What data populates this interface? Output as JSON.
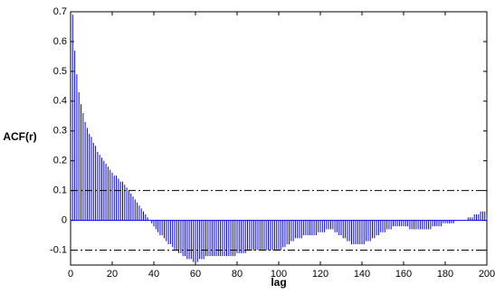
{
  "chart_data": {
    "type": "stem",
    "xlabel": "lag",
    "ylabel": "ACF(r)",
    "x": [
      1,
      2,
      3,
      4,
      5,
      6,
      7,
      8,
      9,
      10,
      11,
      12,
      13,
      14,
      15,
      16,
      17,
      18,
      19,
      20,
      21,
      22,
      23,
      24,
      25,
      26,
      27,
      28,
      29,
      30,
      31,
      32,
      33,
      34,
      35,
      36,
      37,
      38,
      39,
      40,
      41,
      42,
      43,
      44,
      45,
      46,
      47,
      48,
      49,
      50,
      51,
      52,
      53,
      54,
      55,
      56,
      57,
      58,
      59,
      60,
      61,
      62,
      63,
      64,
      65,
      66,
      67,
      68,
      69,
      70,
      71,
      72,
      73,
      74,
      75,
      76,
      77,
      78,
      79,
      80,
      81,
      82,
      83,
      84,
      85,
      86,
      87,
      88,
      89,
      90,
      91,
      92,
      93,
      94,
      95,
      96,
      97,
      98,
      99,
      100,
      101,
      102,
      103,
      104,
      105,
      106,
      107,
      108,
      109,
      110,
      111,
      112,
      113,
      114,
      115,
      116,
      117,
      118,
      119,
      120,
      121,
      122,
      123,
      124,
      125,
      126,
      127,
      128,
      129,
      130,
      131,
      132,
      133,
      134,
      135,
      136,
      137,
      138,
      139,
      140,
      141,
      142,
      143,
      144,
      145,
      146,
      147,
      148,
      149,
      150,
      151,
      152,
      153,
      154,
      155,
      156,
      157,
      158,
      159,
      160,
      161,
      162,
      163,
      164,
      165,
      166,
      167,
      168,
      169,
      170,
      171,
      172,
      173,
      174,
      175,
      176,
      177,
      178,
      179,
      180,
      181,
      182,
      183,
      184,
      185,
      186,
      187,
      188,
      189,
      190,
      191,
      192,
      193,
      194,
      195,
      196,
      197,
      198,
      199,
      200
    ],
    "series": [
      {
        "color": "#0000ff",
        "values": [
          0.69,
          0.57,
          0.49,
          0.43,
          0.39,
          0.36,
          0.33,
          0.31,
          0.29,
          0.28,
          0.26,
          0.25,
          0.23,
          0.22,
          0.21,
          0.2,
          0.19,
          0.18,
          0.17,
          0.16,
          0.15,
          0.15,
          0.14,
          0.13,
          0.13,
          0.12,
          0.11,
          0.1,
          0.09,
          0.08,
          0.07,
          0.06,
          0.05,
          0.04,
          0.03,
          0.02,
          0.01,
          0,
          -0.01,
          -0.02,
          -0.03,
          -0.04,
          -0.05,
          -0.05,
          -0.06,
          -0.07,
          -0.08,
          -0.08,
          -0.09,
          -0.1,
          -0.1,
          -0.11,
          -0.11,
          -0.12,
          -0.12,
          -0.13,
          -0.13,
          -0.13,
          -0.14,
          -0.14,
          -0.14,
          -0.13,
          -0.13,
          -0.13,
          -0.12,
          -0.12,
          -0.12,
          -0.12,
          -0.12,
          -0.12,
          -0.12,
          -0.12,
          -0.12,
          -0.12,
          -0.12,
          -0.12,
          -0.12,
          -0.12,
          -0.12,
          -0.11,
          -0.11,
          -0.11,
          -0.11,
          -0.11,
          -0.1,
          -0.1,
          -0.1,
          -0.1,
          -0.1,
          -0.1,
          -0.1,
          -0.1,
          -0.1,
          -0.1,
          -0.1,
          -0.1,
          -0.1,
          -0.1,
          -0.1,
          -0.1,
          -0.1,
          -0.09,
          -0.09,
          -0.08,
          -0.08,
          -0.07,
          -0.07,
          -0.06,
          -0.06,
          -0.06,
          -0.06,
          -0.05,
          -0.05,
          -0.05,
          -0.05,
          -0.05,
          -0.05,
          -0.05,
          -0.04,
          -0.04,
          -0.04,
          -0.04,
          -0.03,
          -0.03,
          -0.03,
          -0.03,
          -0.04,
          -0.04,
          -0.05,
          -0.05,
          -0.06,
          -0.06,
          -0.07,
          -0.07,
          -0.08,
          -0.08,
          -0.08,
          -0.08,
          -0.08,
          -0.08,
          -0.08,
          -0.07,
          -0.07,
          -0.07,
          -0.06,
          -0.06,
          -0.05,
          -0.05,
          -0.04,
          -0.04,
          -0.04,
          -0.03,
          -0.03,
          -0.03,
          -0.02,
          -0.02,
          -0.02,
          -0.02,
          -0.02,
          -0.02,
          -0.02,
          -0.02,
          -0.03,
          -0.03,
          -0.03,
          -0.03,
          -0.03,
          -0.03,
          -0.03,
          -0.03,
          -0.03,
          -0.03,
          -0.03,
          -0.02,
          -0.02,
          -0.02,
          -0.02,
          -0.02,
          -0.01,
          -0.01,
          -0.01,
          -0.01,
          -0.01,
          -0.01,
          0,
          0,
          0,
          0,
          0,
          0,
          0.01,
          0.01,
          0.01,
          0.02,
          0.02,
          0.02,
          0.03,
          0.03,
          0.03,
          0.02
        ]
      }
    ],
    "confidence_bounds": [
      0.1,
      -0.1
    ],
    "xlim": [
      0,
      200
    ],
    "xticks": [
      0,
      20,
      40,
      60,
      80,
      100,
      120,
      140,
      160,
      180,
      200
    ],
    "ylim": [
      -0.15,
      0.7
    ],
    "yticks": [
      -0.1,
      0,
      0.1,
      0.2,
      0.3,
      0.4,
      0.5,
      0.6,
      0.7
    ]
  }
}
